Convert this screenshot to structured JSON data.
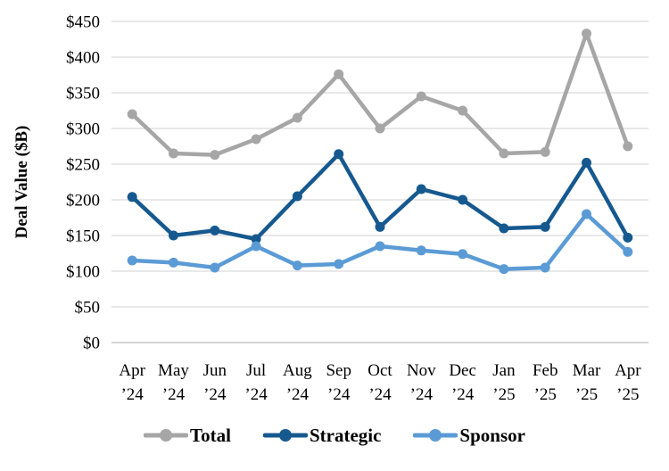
{
  "chart_data": {
    "type": "line",
    "title": "",
    "ylabel": "Deal Value ($B)",
    "xlabel": "",
    "grid": true,
    "legend_position": "bottom",
    "y_axis": {
      "min": 0,
      "max": 450,
      "step": 50,
      "tick_prefix": "$"
    },
    "y_tick_labels": [
      "$0",
      "$50",
      "$100",
      "$150",
      "$200",
      "$250",
      "$300",
      "$350",
      "$400",
      "$450"
    ],
    "categories": [
      {
        "month": "Apr",
        "year": "’24"
      },
      {
        "month": "May",
        "year": "’24"
      },
      {
        "month": "Jun",
        "year": "’24"
      },
      {
        "month": "Jul",
        "year": "’24"
      },
      {
        "month": "Aug",
        "year": "’24"
      },
      {
        "month": "Sep",
        "year": "’24"
      },
      {
        "month": "Oct",
        "year": "’24"
      },
      {
        "month": "Nov",
        "year": "’24"
      },
      {
        "month": "Dec",
        "year": "’24"
      },
      {
        "month": "Jan",
        "year": "’25"
      },
      {
        "month": "Feb",
        "year": "’25"
      },
      {
        "month": "Mar",
        "year": "’25"
      },
      {
        "month": "Apr",
        "year": "’25"
      }
    ],
    "series": [
      {
        "name": "Total",
        "color": "#A6A6A6",
        "values": [
          320,
          265,
          263,
          285,
          315,
          376,
          300,
          345,
          325,
          265,
          267,
          433,
          275
        ]
      },
      {
        "name": "Strategic",
        "color": "#16598F",
        "values": [
          204,
          150,
          157,
          145,
          205,
          264,
          162,
          215,
          200,
          160,
          162,
          252,
          147
        ]
      },
      {
        "name": "Sponsor",
        "color": "#5B9BD5",
        "values": [
          115,
          112,
          105,
          135,
          108,
          110,
          135,
          129,
          124,
          103,
          105,
          180,
          127
        ]
      }
    ]
  }
}
